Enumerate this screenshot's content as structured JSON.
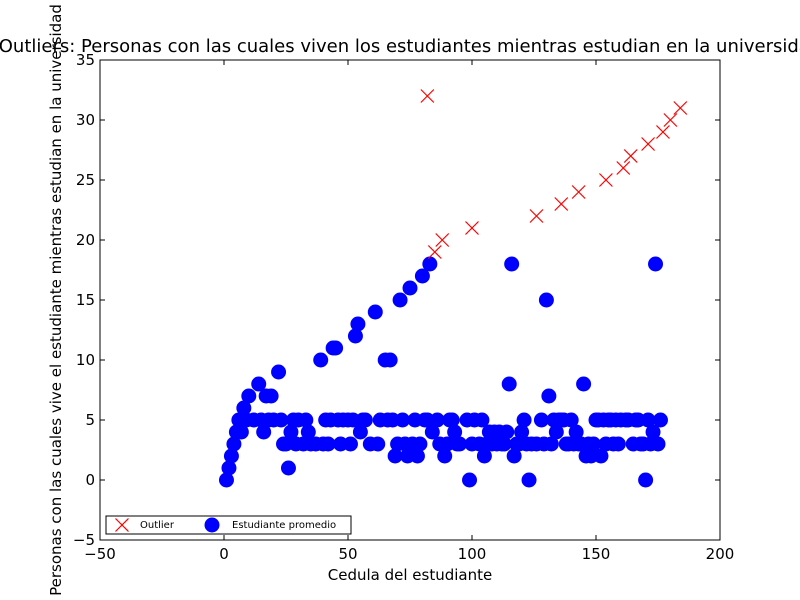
{
  "chart_data": {
    "type": "scatter",
    "title": "Outliers: Personas con las cuales viven los estudiantes mientras estudian en la universidad",
    "xlabel": "Cedula del estudiante",
    "ylabel": "Personas con las cuales vive el estudiante mientras estudian en la universidad",
    "xlim": [
      -50,
      200
    ],
    "ylim": [
      -5,
      35
    ],
    "xticks": [
      "−50",
      "0",
      "50",
      "100",
      "150",
      "200"
    ],
    "yticks": [
      "−5",
      "0",
      "5",
      "10",
      "15",
      "20",
      "25",
      "30",
      "35"
    ],
    "legend_position": "lower-left",
    "series": [
      {
        "name": "Outlier",
        "marker": "x",
        "color": "#ff0000",
        "points": [
          [
            82,
            32
          ],
          [
            85,
            19
          ],
          [
            88,
            20
          ],
          [
            100,
            21
          ],
          [
            126,
            22
          ],
          [
            136,
            23
          ],
          [
            143,
            24
          ],
          [
            154,
            25
          ],
          [
            161,
            26
          ],
          [
            164,
            27
          ],
          [
            171,
            28
          ],
          [
            177,
            29
          ],
          [
            180,
            30
          ],
          [
            184,
            31
          ]
        ]
      },
      {
        "name": "Estudiante promedio",
        "marker": "o",
        "color": "#0000ff",
        "points": [
          [
            1,
            0
          ],
          [
            2,
            1
          ],
          [
            3,
            2
          ],
          [
            4,
            3
          ],
          [
            5,
            4
          ],
          [
            6,
            5
          ],
          [
            7,
            4
          ],
          [
            8,
            6
          ],
          [
            9,
            5
          ],
          [
            10,
            7
          ],
          [
            12,
            5
          ],
          [
            14,
            8
          ],
          [
            15,
            5
          ],
          [
            16,
            4
          ],
          [
            17,
            7
          ],
          [
            18,
            5
          ],
          [
            19,
            7
          ],
          [
            20,
            5
          ],
          [
            22,
            9
          ],
          [
            23,
            5
          ],
          [
            24,
            3
          ],
          [
            25,
            3
          ],
          [
            26,
            1
          ],
          [
            27,
            4
          ],
          [
            28,
            5
          ],
          [
            29,
            3
          ],
          [
            30,
            5
          ],
          [
            32,
            3
          ],
          [
            33,
            5
          ],
          [
            34,
            4
          ],
          [
            35,
            3
          ],
          [
            37,
            3
          ],
          [
            39,
            10
          ],
          [
            40,
            3
          ],
          [
            41,
            5
          ],
          [
            42,
            3
          ],
          [
            43,
            5
          ],
          [
            44,
            11
          ],
          [
            45,
            11
          ],
          [
            46,
            5
          ],
          [
            47,
            3
          ],
          [
            48,
            5
          ],
          [
            50,
            5
          ],
          [
            51,
            3
          ],
          [
            52,
            5
          ],
          [
            53,
            12
          ],
          [
            54,
            13
          ],
          [
            55,
            4
          ],
          [
            56,
            5
          ],
          [
            57,
            5
          ],
          [
            59,
            3
          ],
          [
            61,
            14
          ],
          [
            62,
            3
          ],
          [
            63,
            5
          ],
          [
            65,
            10
          ],
          [
            66,
            5
          ],
          [
            67,
            10
          ],
          [
            68,
            5
          ],
          [
            69,
            2
          ],
          [
            70,
            3
          ],
          [
            71,
            15
          ],
          [
            72,
            5
          ],
          [
            73,
            3
          ],
          [
            74,
            2
          ],
          [
            75,
            16
          ],
          [
            76,
            3
          ],
          [
            77,
            5
          ],
          [
            78,
            2
          ],
          [
            79,
            3
          ],
          [
            80,
            17
          ],
          [
            81,
            5
          ],
          [
            82,
            5
          ],
          [
            83,
            18
          ],
          [
            84,
            4
          ],
          [
            86,
            5
          ],
          [
            87,
            3
          ],
          [
            89,
            2
          ],
          [
            90,
            3
          ],
          [
            91,
            5
          ],
          [
            92,
            5
          ],
          [
            93,
            4
          ],
          [
            94,
            3
          ],
          [
            95,
            3
          ],
          [
            98,
            5
          ],
          [
            99,
            0
          ],
          [
            100,
            3
          ],
          [
            101,
            5
          ],
          [
            103,
            3
          ],
          [
            104,
            5
          ],
          [
            105,
            2
          ],
          [
            106,
            3
          ],
          [
            107,
            4
          ],
          [
            108,
            3
          ],
          [
            109,
            4
          ],
          [
            110,
            3
          ],
          [
            111,
            4
          ],
          [
            112,
            3
          ],
          [
            113,
            3
          ],
          [
            114,
            4
          ],
          [
            115,
            8
          ],
          [
            116,
            18
          ],
          [
            117,
            2
          ],
          [
            118,
            3
          ],
          [
            119,
            3
          ],
          [
            120,
            4
          ],
          [
            121,
            5
          ],
          [
            122,
            3
          ],
          [
            123,
            0
          ],
          [
            124,
            3
          ],
          [
            126,
            3
          ],
          [
            128,
            5
          ],
          [
            129,
            3
          ],
          [
            130,
            15
          ],
          [
            131,
            7
          ],
          [
            132,
            3
          ],
          [
            133,
            5
          ],
          [
            134,
            4
          ],
          [
            135,
            5
          ],
          [
            136,
            5
          ],
          [
            137,
            5
          ],
          [
            138,
            3
          ],
          [
            139,
            3
          ],
          [
            140,
            5
          ],
          [
            141,
            3
          ],
          [
            142,
            4
          ],
          [
            143,
            3
          ],
          [
            144,
            3
          ],
          [
            145,
            8
          ],
          [
            146,
            2
          ],
          [
            147,
            3
          ],
          [
            148,
            2
          ],
          [
            149,
            3
          ],
          [
            150,
            5
          ],
          [
            151,
            5
          ],
          [
            152,
            2
          ],
          [
            153,
            5
          ],
          [
            154,
            3
          ],
          [
            155,
            5
          ],
          [
            156,
            5
          ],
          [
            157,
            3
          ],
          [
            158,
            5
          ],
          [
            159,
            3
          ],
          [
            160,
            5
          ],
          [
            162,
            5
          ],
          [
            163,
            5
          ],
          [
            165,
            3
          ],
          [
            166,
            5
          ],
          [
            167,
            5
          ],
          [
            168,
            3
          ],
          [
            169,
            3
          ],
          [
            170,
            0
          ],
          [
            171,
            5
          ],
          [
            172,
            3
          ],
          [
            173,
            4
          ],
          [
            174,
            18
          ],
          [
            175,
            3
          ],
          [
            176,
            5
          ]
        ]
      }
    ]
  }
}
